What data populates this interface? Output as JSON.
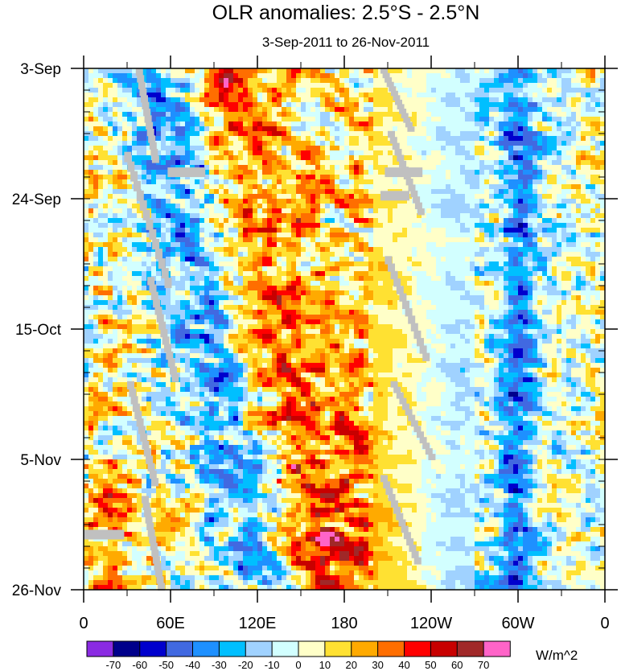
{
  "chart_data": {
    "type": "heatmap",
    "title": "OLR anomalies: 2.5°S - 2.5°N",
    "subtitle": "3-Sep-2011 to 26-Nov-2011",
    "x_ticks": [
      "0",
      "60E",
      "120E",
      "180",
      "120W",
      "60W",
      "0"
    ],
    "x_range_deg_east": [
      0,
      360
    ],
    "y_ticks": [
      "3-Sep",
      "24-Sep",
      "15-Oct",
      "5-Nov",
      "26-Nov"
    ],
    "y_range": [
      "3-Sep-2011",
      "26-Nov-2011"
    ],
    "colorbar": {
      "units": "W/m^2",
      "levels": [
        "-70",
        "-60",
        "-50",
        "-40",
        "-30",
        "-20",
        "-10",
        "0",
        "10",
        "20",
        "30",
        "40",
        "50",
        "60",
        "70"
      ],
      "colors": [
        "#8a2be2",
        "#00008b",
        "#0000cd",
        "#4169e1",
        "#1e90ff",
        "#00bfff",
        "#a0d2ff",
        "#d2ffff",
        "#ffffc8",
        "#ffe132",
        "#ffaa00",
        "#ff6e00",
        "#ff0000",
        "#c80000",
        "#a02828",
        "#ff64c8"
      ]
    },
    "missing_color": "#c0c0c0"
  }
}
